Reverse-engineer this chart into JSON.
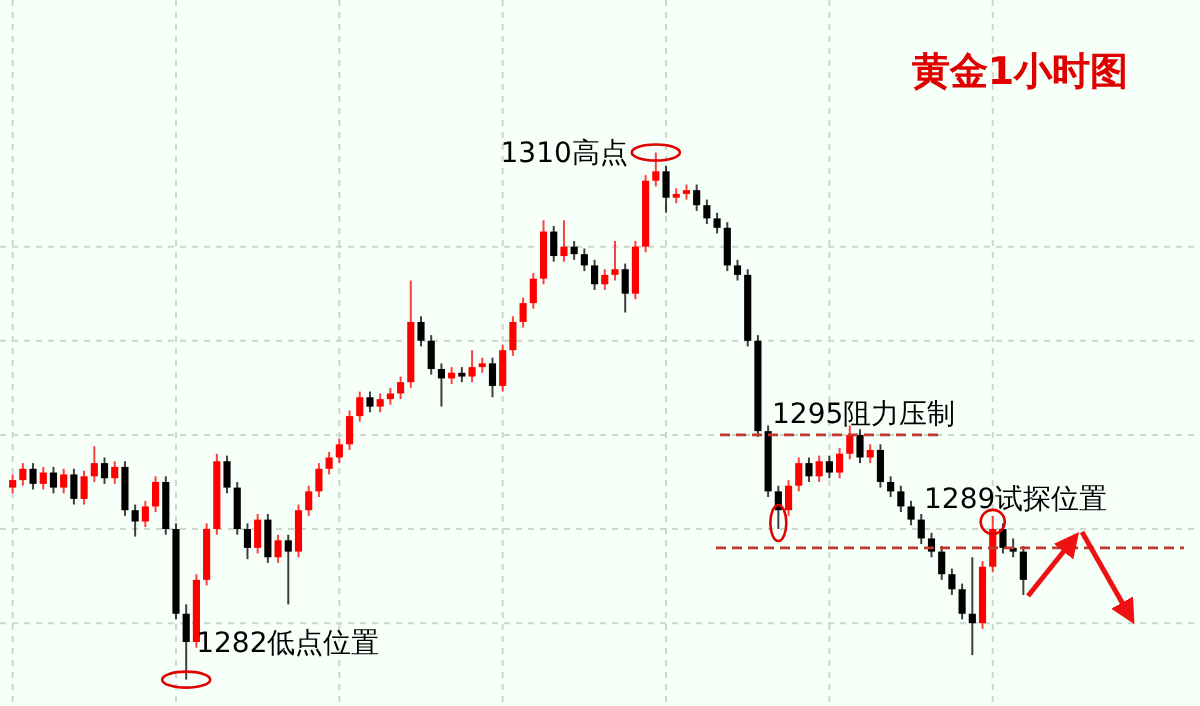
{
  "chart_data": {
    "type": "candlestick",
    "title": "黄金1小时图",
    "categories": [
      null,
      null,
      null,
      null,
      null,
      null,
      null,
      null,
      null,
      null,
      null,
      null,
      null,
      null,
      null,
      null,
      null,
      null,
      null,
      null,
      null,
      null,
      null,
      null,
      null,
      null,
      null,
      null,
      null,
      null,
      null,
      null,
      null,
      null,
      null,
      null,
      null,
      null,
      null,
      null,
      null,
      null,
      null,
      null,
      null,
      null,
      null,
      null,
      null,
      null,
      null,
      null,
      null,
      null,
      null,
      null,
      null,
      null,
      null,
      null,
      null,
      null,
      null,
      null,
      null,
      null,
      null,
      null,
      null,
      null,
      null,
      null,
      null,
      null,
      null,
      null,
      null,
      null,
      null,
      null,
      null,
      null,
      null,
      null,
      null,
      null,
      null,
      null,
      null,
      null,
      null,
      null,
      null,
      null,
      null,
      null,
      null,
      null,
      null,
      null
    ],
    "ohlc": [
      [
        1292.2,
        1292.9,
        1291.9,
        1292.6
      ],
      [
        1292.6,
        1293.5,
        1292.3,
        1293.2
      ],
      [
        1293.2,
        1293.5,
        1292.1,
        1292.4
      ],
      [
        1292.4,
        1293.3,
        1292.1,
        1293.0
      ],
      [
        1293.0,
        1293.3,
        1291.9,
        1292.2
      ],
      [
        1292.2,
        1293.2,
        1291.9,
        1292.9
      ],
      [
        1292.9,
        1293.2,
        1291.3,
        1291.6
      ],
      [
        1291.6,
        1293.1,
        1291.3,
        1292.8
      ],
      [
        1292.8,
        1294.4,
        1292.5,
        1293.5
      ],
      [
        1293.5,
        1293.8,
        1292.4,
        1292.7
      ],
      [
        1292.7,
        1293.6,
        1292.4,
        1293.3
      ],
      [
        1293.3,
        1293.6,
        1290.7,
        1291.0
      ],
      [
        1291.0,
        1291.3,
        1289.6,
        1290.4
      ],
      [
        1290.4,
        1291.5,
        1290.1,
        1291.2
      ],
      [
        1291.2,
        1292.8,
        1290.9,
        1292.5
      ],
      [
        1292.5,
        1292.8,
        1289.7,
        1290.0
      ],
      [
        1290.0,
        1290.3,
        1285.2,
        1285.5
      ],
      [
        1285.5,
        1286.0,
        1282.0,
        1284.0
      ],
      [
        1284.0,
        1287.6,
        1283.7,
        1287.3
      ],
      [
        1287.3,
        1290.3,
        1287.0,
        1290.0
      ],
      [
        1290.0,
        1294.0,
        1289.7,
        1293.6
      ],
      [
        1293.6,
        1293.9,
        1291.9,
        1292.2
      ],
      [
        1292.2,
        1292.5,
        1289.7,
        1290.0
      ],
      [
        1290.0,
        1290.3,
        1288.4,
        1289.0
      ],
      [
        1289.0,
        1290.8,
        1288.7,
        1290.5
      ],
      [
        1290.5,
        1290.8,
        1288.2,
        1288.5
      ],
      [
        1288.5,
        1289.7,
        1288.2,
        1289.4
      ],
      [
        1289.4,
        1289.7,
        1286.0,
        1288.8
      ],
      [
        1288.8,
        1291.3,
        1288.5,
        1291.0
      ],
      [
        1291.0,
        1292.3,
        1290.7,
        1292.0
      ],
      [
        1292.0,
        1293.5,
        1291.7,
        1293.2
      ],
      [
        1293.2,
        1294.1,
        1292.9,
        1293.8
      ],
      [
        1293.8,
        1294.8,
        1293.5,
        1294.5
      ],
      [
        1294.5,
        1296.3,
        1294.2,
        1296.0
      ],
      [
        1296.0,
        1297.3,
        1295.7,
        1297.0
      ],
      [
        1297.0,
        1297.3,
        1296.2,
        1296.5
      ],
      [
        1296.5,
        1297.2,
        1296.2,
        1296.9
      ],
      [
        1296.9,
        1297.5,
        1296.6,
        1297.2
      ],
      [
        1297.2,
        1298.1,
        1296.9,
        1297.8
      ],
      [
        1297.8,
        1303.2,
        1297.5,
        1301.0
      ],
      [
        1301.0,
        1301.3,
        1299.7,
        1300.0
      ],
      [
        1300.0,
        1300.3,
        1298.2,
        1298.5
      ],
      [
        1298.5,
        1298.8,
        1296.5,
        1298.0
      ],
      [
        1298.0,
        1298.6,
        1297.7,
        1298.3
      ],
      [
        1298.3,
        1298.6,
        1297.8,
        1298.1
      ],
      [
        1298.1,
        1299.5,
        1297.8,
        1298.6
      ],
      [
        1298.6,
        1299.1,
        1298.3,
        1298.8
      ],
      [
        1298.8,
        1299.1,
        1297.0,
        1297.6
      ],
      [
        1297.6,
        1299.8,
        1297.3,
        1299.5
      ],
      [
        1299.5,
        1301.3,
        1299.2,
        1301.0
      ],
      [
        1301.0,
        1302.3,
        1300.7,
        1302.0
      ],
      [
        1302.0,
        1303.6,
        1301.7,
        1303.3
      ],
      [
        1303.3,
        1306.4,
        1303.0,
        1305.8
      ],
      [
        1305.8,
        1306.1,
        1304.2,
        1304.5
      ],
      [
        1304.5,
        1306.4,
        1304.2,
        1305.0
      ],
      [
        1305.0,
        1305.3,
        1304.3,
        1304.6
      ],
      [
        1304.6,
        1304.9,
        1303.7,
        1304.0
      ],
      [
        1304.0,
        1304.3,
        1302.7,
        1303.0
      ],
      [
        1303.0,
        1303.8,
        1302.7,
        1303.5
      ],
      [
        1303.5,
        1305.3,
        1303.2,
        1303.8
      ],
      [
        1303.8,
        1304.1,
        1301.5,
        1302.5
      ],
      [
        1302.5,
        1305.3,
        1302.2,
        1305.0
      ],
      [
        1305.0,
        1308.8,
        1304.7,
        1308.5
      ],
      [
        1308.5,
        1310.0,
        1308.2,
        1309.0
      ],
      [
        1309.0,
        1309.3,
        1306.8,
        1307.6
      ],
      [
        1307.6,
        1308.1,
        1307.3,
        1307.8
      ],
      [
        1307.8,
        1308.3,
        1307.5,
        1308.0
      ],
      [
        1308.0,
        1308.3,
        1306.9,
        1307.2
      ],
      [
        1307.2,
        1307.5,
        1306.2,
        1306.5
      ],
      [
        1306.5,
        1306.8,
        1305.7,
        1306.0
      ],
      [
        1306.0,
        1306.3,
        1303.7,
        1304.0
      ],
      [
        1304.0,
        1304.3,
        1303.2,
        1303.5
      ],
      [
        1303.5,
        1303.8,
        1299.7,
        1300.0
      ],
      [
        1300.0,
        1300.3,
        1294.9,
        1295.2
      ],
      [
        1295.2,
        1295.5,
        1291.7,
        1292.0
      ],
      [
        1292.0,
        1292.3,
        1290.0,
        1291.0
      ],
      [
        1291.0,
        1292.6,
        1290.7,
        1292.3
      ],
      [
        1292.3,
        1293.8,
        1292.0,
        1293.5
      ],
      [
        1293.5,
        1293.8,
        1292.5,
        1292.8
      ],
      [
        1292.8,
        1293.9,
        1292.5,
        1293.6
      ],
      [
        1293.6,
        1293.9,
        1292.7,
        1293.0
      ],
      [
        1293.0,
        1294.3,
        1292.7,
        1294.0
      ],
      [
        1294.0,
        1295.5,
        1293.7,
        1295.0
      ],
      [
        1295.0,
        1295.3,
        1293.5,
        1293.8
      ],
      [
        1293.8,
        1294.5,
        1293.5,
        1294.2
      ],
      [
        1294.2,
        1294.5,
        1292.2,
        1292.5
      ],
      [
        1292.5,
        1292.8,
        1291.7,
        1292.0
      ],
      [
        1292.0,
        1292.3,
        1290.9,
        1291.2
      ],
      [
        1291.2,
        1291.5,
        1290.2,
        1290.5
      ],
      [
        1290.5,
        1290.8,
        1289.2,
        1289.5
      ],
      [
        1289.5,
        1289.8,
        1288.5,
        1288.8
      ],
      [
        1288.8,
        1289.1,
        1287.3,
        1287.6
      ],
      [
        1287.6,
        1287.9,
        1286.5,
        1286.8
      ],
      [
        1286.8,
        1287.1,
        1285.2,
        1285.5
      ],
      [
        1285.5,
        1288.5,
        1283.3,
        1285.0
      ],
      [
        1285.0,
        1288.3,
        1284.7,
        1288.0
      ],
      [
        1288.0,
        1290.7,
        1287.7,
        1290.0
      ],
      [
        1290.0,
        1290.3,
        1288.7,
        1289.0
      ],
      [
        1289.0,
        1289.5,
        1288.5,
        1288.8
      ],
      [
        1288.8,
        1289.1,
        1286.5,
        1287.3
      ]
    ],
    "ylim": [
      1280.6,
      1318.1
    ],
    "yticks": [
      {
        "value": 1285,
        "label": null
      },
      {
        "value": 1290,
        "label": null
      },
      {
        "value": 1295,
        "label": null
      },
      {
        "value": 1300,
        "label": null
      },
      {
        "value": 1305,
        "label": null
      }
    ],
    "grid": true,
    "ref_lines": [
      {
        "axis": "y",
        "value": 1295,
        "label": "1295阻力压制",
        "color": "#c0392b",
        "line_style": "dashed"
      },
      {
        "axis": "y",
        "value": 1289,
        "label": "1289试探位置",
        "color": "#c0392b",
        "line_style": "dashed"
      }
    ],
    "annotations": [
      "1310高点",
      "1282低点位置"
    ]
  }
}
